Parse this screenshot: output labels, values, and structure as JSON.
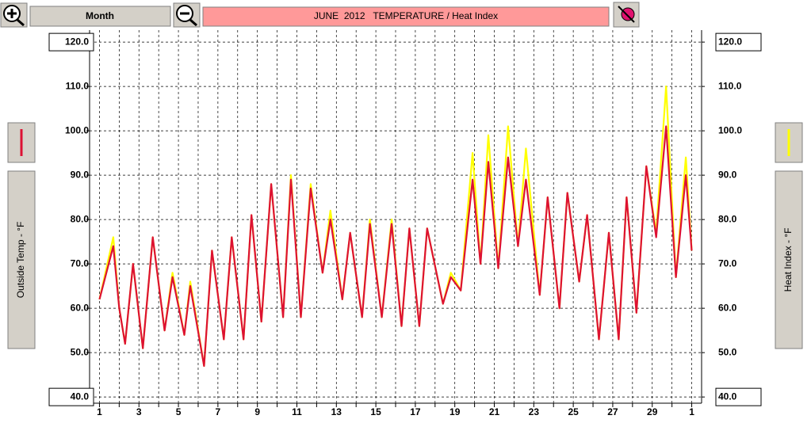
{
  "toolbar": {
    "range_button": "Month"
  },
  "chart_data": {
    "type": "line",
    "title": "JUNE  2012   TEMPERATURE / Heat Index",
    "x": [
      1,
      1.7,
      2.0,
      2.3,
      2.7,
      3.2,
      3.7,
      4.3,
      4.7,
      5.3,
      5.6,
      6.3,
      6.7,
      7.3,
      7.7,
      8.3,
      8.7,
      9.2,
      9.7,
      10.3,
      10.7,
      11.2,
      11.7,
      12.3,
      12.7,
      13.3,
      13.7,
      14.3,
      14.7,
      15.3,
      15.8,
      16.3,
      16.7,
      17.2,
      17.6,
      18.4,
      18.8,
      19.3,
      19.9,
      20.3,
      20.7,
      21.2,
      21.7,
      22.2,
      22.6,
      23.3,
      23.7,
      24.3,
      24.7,
      25.3,
      25.7,
      26.3,
      26.8,
      27.3,
      27.7,
      28.2,
      28.7,
      29.2,
      29.7,
      30.2,
      30.7,
      31
    ],
    "series": [
      {
        "name": "Heat Index - °F",
        "color": "#ffff00",
        "axis": "y2",
        "values": [
          62,
          76,
          60,
          52,
          70,
          51,
          76,
          55,
          68,
          54,
          66,
          47,
          73,
          53,
          76,
          53,
          81,
          57,
          88,
          58,
          90,
          58,
          88,
          68,
          82,
          62,
          77,
          58,
          80,
          58,
          80,
          56,
          78,
          56,
          78,
          61,
          68,
          64,
          95,
          70,
          99,
          69,
          101,
          74,
          96,
          63,
          85,
          60,
          86,
          66,
          81,
          53,
          77,
          53,
          85,
          59,
          92,
          77,
          110,
          67,
          94,
          73
        ]
      },
      {
        "name": "Outside Temp - °F",
        "color": "#dd1133",
        "values": [
          62,
          74,
          60,
          52,
          70,
          51,
          76,
          55,
          67,
          54,
          65,
          47,
          73,
          53,
          76,
          53,
          81,
          57,
          88,
          58,
          89,
          58,
          87,
          68,
          80,
          62,
          77,
          58,
          79,
          58,
          79,
          56,
          78,
          56,
          78,
          61,
          67,
          64,
          89,
          70,
          93,
          69,
          94,
          74,
          89,
          63,
          85,
          60,
          86,
          66,
          81,
          53,
          77,
          53,
          85,
          59,
          92,
          76,
          101,
          67,
          90,
          73
        ]
      }
    ],
    "xlim": [
      0.5,
      31.5
    ],
    "xticks": [
      1,
      {
        "value": 2,
        "label": null
      },
      3,
      {
        "value": 4,
        "label": null
      },
      5,
      {
        "value": 6,
        "label": null
      },
      7,
      {
        "value": 8,
        "label": null
      },
      9,
      {
        "value": 10,
        "label": null
      },
      11,
      {
        "value": 12,
        "label": null
      },
      13,
      {
        "value": 14,
        "label": null
      },
      15,
      {
        "value": 16,
        "label": null
      },
      17,
      {
        "value": 18,
        "label": null
      },
      19,
      {
        "value": 20,
        "label": null
      },
      21,
      {
        "value": 22,
        "label": null
      },
      23,
      {
        "value": 24,
        "label": null
      },
      25,
      {
        "value": 26,
        "label": null
      },
      27,
      {
        "value": 28,
        "label": null
      },
      29,
      {
        "value": 30,
        "label": null
      },
      {
        "value": 31,
        "label": "1"
      }
    ],
    "ylim": [
      38.6,
      122.7
    ],
    "yticks": [
      {
        "value": 40,
        "label": "40.0"
      },
      {
        "value": 50,
        "label": "50.0"
      },
      {
        "value": 60,
        "label": "60.0"
      },
      {
        "value": 70,
        "label": "70.0"
      },
      {
        "value": 80,
        "label": "80.0"
      },
      {
        "value": 90,
        "label": "90.0"
      },
      {
        "value": 100,
        "label": "100.0"
      },
      {
        "value": 110,
        "label": "110.0"
      },
      {
        "value": 120,
        "label": "120.0"
      }
    ],
    "y2lim": [
      38.6,
      122.7
    ],
    "y2ticks": [
      {
        "value": 40,
        "label": "40.0"
      },
      {
        "value": 50,
        "label": "50.0"
      },
      {
        "value": 60,
        "label": "60.0"
      },
      {
        "value": 70,
        "label": "70.0"
      },
      {
        "value": 80,
        "label": "80.0"
      },
      {
        "value": 90,
        "label": "90.0"
      },
      {
        "value": 100,
        "label": "100.0"
      },
      {
        "value": 110,
        "label": "110.0"
      },
      {
        "value": 120,
        "label": "120.0"
      }
    ],
    "grid": true
  }
}
